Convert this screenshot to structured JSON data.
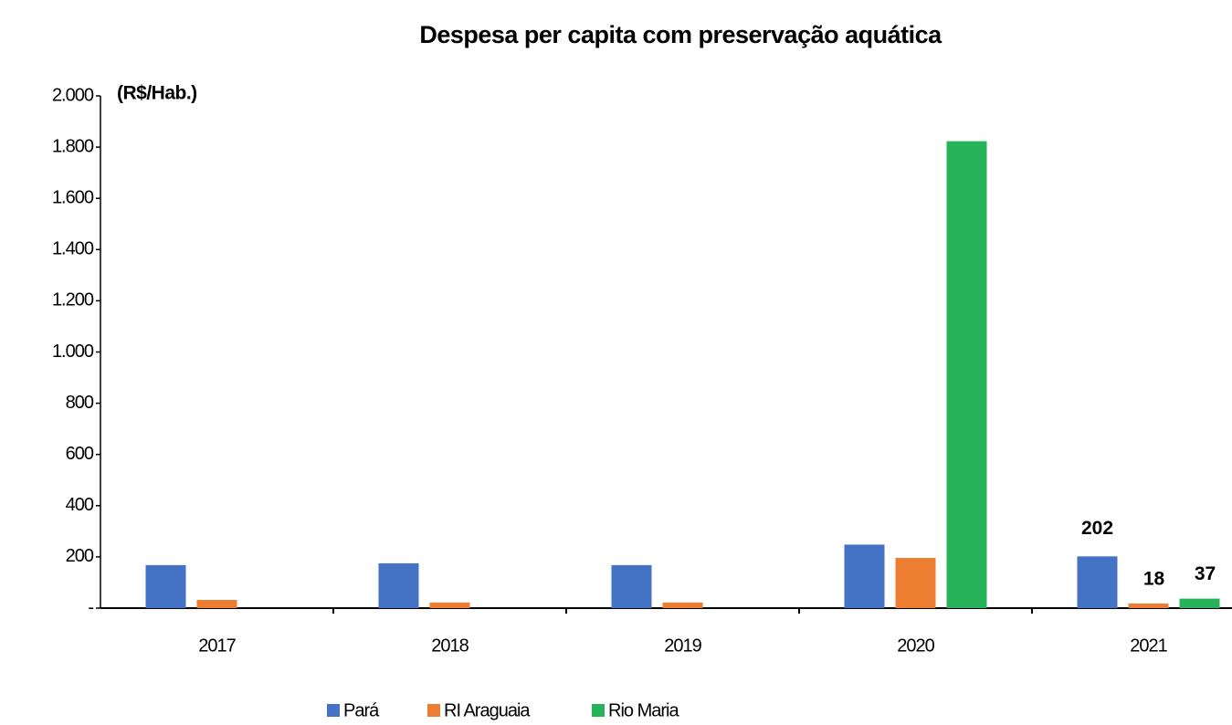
{
  "chart_data": {
    "type": "bar",
    "title": "Despesa per capita com preservação aquática",
    "y_label": "(R$/Hab.)",
    "categories": [
      "2017",
      "2018",
      "2019",
      "2020",
      "2021"
    ],
    "series": [
      {
        "name": "Pará",
        "color": "#4472c4",
        "values": [
          168,
          175,
          168,
          248,
          202
        ],
        "value_labels": [
          null,
          null,
          null,
          null,
          "202"
        ]
      },
      {
        "name": "RI Araguaia",
        "color": "#ed7d31",
        "values": [
          32,
          22,
          22,
          196,
          18
        ],
        "value_labels": [
          null,
          null,
          null,
          null,
          "18"
        ]
      },
      {
        "name": "Rio Maria",
        "color": "#27b35a",
        "values": [
          0,
          0,
          0,
          1823,
          37
        ],
        "value_labels": [
          null,
          null,
          null,
          null,
          "37"
        ]
      }
    ],
    "ylim": [
      0,
      2000
    ],
    "yticks": [
      {
        "value": 0,
        "label": "-"
      },
      200,
      400,
      600,
      800,
      {
        "value": 1000,
        "label": "1.000"
      },
      {
        "value": 1200,
        "label": "1.200"
      },
      {
        "value": 1400,
        "label": "1.400"
      },
      {
        "value": 1600,
        "label": "1.600"
      },
      {
        "value": 1800,
        "label": "1.800"
      },
      {
        "value": 2000,
        "label": "2.000"
      }
    ],
    "legend": "bottom"
  }
}
